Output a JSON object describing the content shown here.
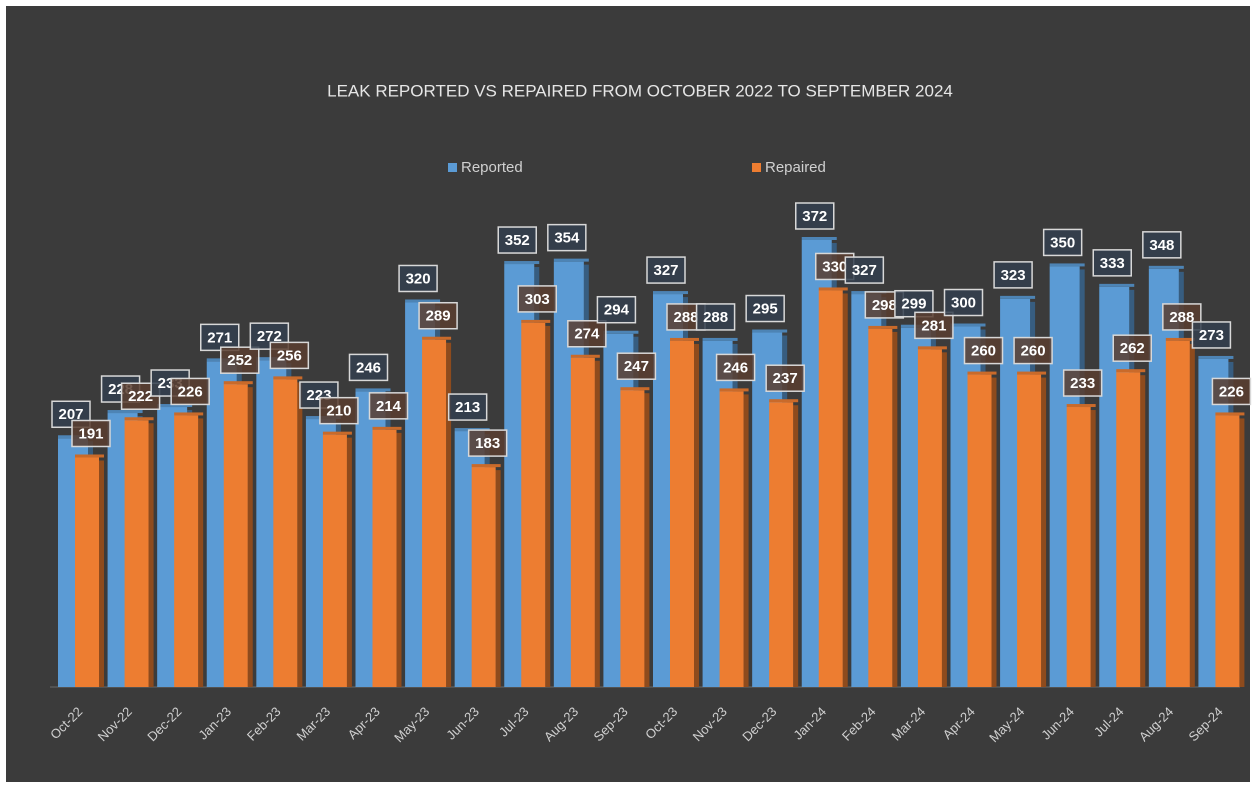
{
  "chart_data": {
    "type": "bar",
    "title": "LEAK REPORTED VS REPAIRED FROM OCTOBER 2022 TO SEPTEMBER 2024",
    "categories": [
      "Oct-22",
      "Nov-22",
      "Dec-22",
      "Jan-23",
      "Feb-23",
      "Mar-23",
      "Apr-23",
      "May-23",
      "Jun-23",
      "Jul-23",
      "Aug-23",
      "Sep-23",
      "Oct-23",
      "Nov-23",
      "Dec-23",
      "Jan-24",
      "Feb-24",
      "Mar-24",
      "Apr-24",
      "May-24",
      "Jun-24",
      "Jul-24",
      "Aug-24",
      "Sep-24"
    ],
    "series": [
      {
        "name": "Reported",
        "color": "#5b9bd5",
        "values": [
          207,
          228,
          233,
          271,
          272,
          223,
          246,
          320,
          213,
          352,
          354,
          294,
          327,
          288,
          295,
          372,
          327,
          299,
          300,
          323,
          350,
          333,
          348,
          273
        ]
      },
      {
        "name": "Repaired",
        "color": "#ed7d31",
        "values": [
          191,
          222,
          226,
          252,
          256,
          210,
          214,
          289,
          183,
          303,
          274,
          247,
          288,
          246,
          237,
          330,
          298,
          281,
          260,
          260,
          233,
          262,
          288,
          226
        ]
      }
    ],
    "legend": "top"
  }
}
